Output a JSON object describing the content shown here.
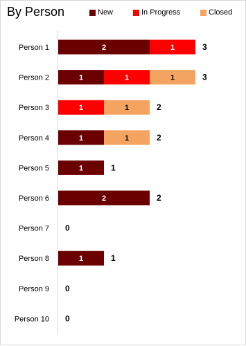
{
  "chart_data": {
    "type": "bar",
    "orientation": "horizontal",
    "stacked": true,
    "title": "By Person",
    "categories": [
      "Person 1",
      "Person 2",
      "Person 3",
      "Person 4",
      "Person 5",
      "Person 6",
      "Person 7",
      "Person 8",
      "Person 9",
      "Person 10"
    ],
    "series": [
      {
        "name": "New",
        "color": "#6b0000",
        "values": [
          2,
          1,
          0,
          1,
          1,
          2,
          0,
          1,
          0,
          0
        ]
      },
      {
        "name": "In Progress",
        "color": "#ff0000",
        "values": [
          1,
          1,
          1,
          0,
          0,
          0,
          0,
          0,
          0,
          0
        ]
      },
      {
        "name": "Closed",
        "color": "#f4a460",
        "values": [
          0,
          1,
          1,
          1,
          0,
          0,
          0,
          0,
          0,
          0
        ]
      }
    ],
    "totals": [
      3,
      3,
      2,
      2,
      1,
      2,
      0,
      1,
      0,
      0
    ],
    "xlim": [
      0,
      4
    ],
    "legend_position": "top-right",
    "grid": false
  }
}
